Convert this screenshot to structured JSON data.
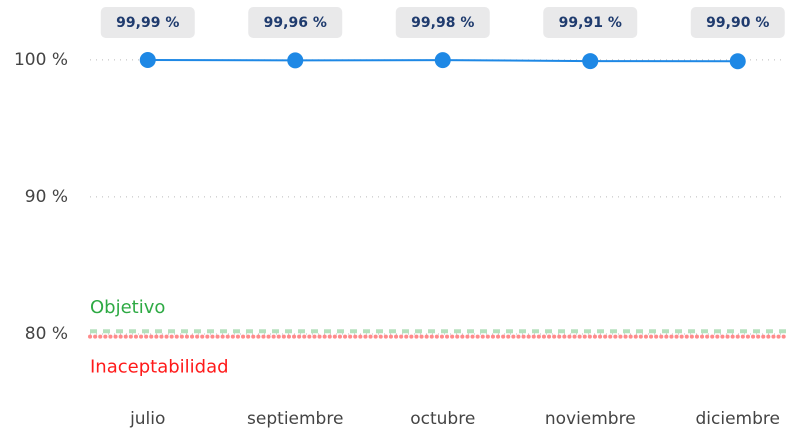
{
  "chart_data": {
    "type": "line",
    "categories": [
      "julio",
      "septiembre",
      "octubre",
      "noviembre",
      "diciembre"
    ],
    "series": [
      {
        "color": "#1e88e5",
        "values": [
          99.99,
          99.96,
          99.98,
          99.91,
          99.9
        ],
        "value_labels": [
          "99,99 %",
          "99,96 %",
          "99,98 %",
          "99,91 %",
          "99,90 %"
        ]
      }
    ],
    "ylim": [
      78.5,
      100.5
    ],
    "yticks": [
      {
        "value": 80,
        "label": "80 %"
      },
      {
        "value": 90,
        "label": "90 %"
      },
      {
        "value": 100,
        "label": "100 %"
      }
    ],
    "grid": true,
    "reference_lines": [
      {
        "label": "Objetivo",
        "value": 80.2,
        "color": "#2eaa44",
        "style": "dashed"
      },
      {
        "label": "Inaceptabilidad",
        "value": 79.8,
        "color": "#ff1a1a",
        "style": "dotted"
      }
    ]
  }
}
